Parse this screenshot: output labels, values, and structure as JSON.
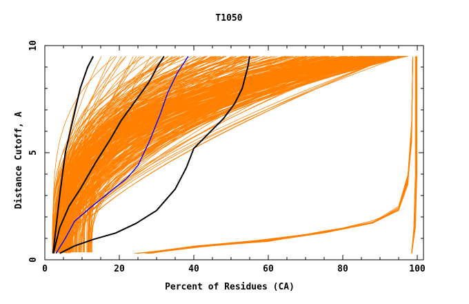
{
  "chart_data": {
    "type": "line",
    "title": "T1050",
    "xlabel": "Percent of Residues (CA)",
    "ylabel": "Distance Cutoff, A",
    "xlim": [
      0,
      101
    ],
    "ylim": [
      0,
      9.5
    ],
    "x_ticks": [
      0,
      20,
      40,
      60,
      80,
      100
    ],
    "y_ticks": [
      0,
      5,
      10
    ],
    "grid": false,
    "legend": "none",
    "colors": {
      "bundle": "#ff8000",
      "highlight_black": "#000000",
      "highlight_blue": "#0000ff"
    },
    "series": [
      {
        "color": "#000000",
        "values": [
          [
            2.2,
            0.3
          ],
          [
            3.0,
            1.5
          ],
          [
            4.0,
            3.0
          ],
          [
            5.5,
            5.0
          ],
          [
            7.5,
            6.5
          ],
          [
            9.5,
            8.0
          ],
          [
            11.5,
            9.0
          ],
          [
            13.0,
            9.5
          ]
        ]
      },
      {
        "color": "#000000",
        "values": [
          [
            2.3,
            0.3
          ],
          [
            4.0,
            1.5
          ],
          [
            6.5,
            2.5
          ],
          [
            9.5,
            3.3
          ],
          [
            13.5,
            4.5
          ],
          [
            17.5,
            5.6
          ],
          [
            20.5,
            6.5
          ],
          [
            25.5,
            7.7
          ],
          [
            28.0,
            8.3
          ],
          [
            30.5,
            9.1
          ],
          [
            32.0,
            9.5
          ]
        ]
      },
      {
        "color": "#0000ff",
        "values": [
          [
            3.0,
            0.3
          ],
          [
            5.5,
            1.0
          ],
          [
            8.0,
            1.8
          ],
          [
            12.0,
            2.4
          ],
          [
            17.0,
            3.1
          ],
          [
            22.0,
            3.8
          ],
          [
            25.0,
            4.4
          ],
          [
            28.0,
            5.5
          ],
          [
            31.0,
            6.8
          ],
          [
            33.0,
            7.8
          ],
          [
            35.5,
            8.7
          ],
          [
            38.5,
            9.5
          ]
        ]
      },
      {
        "color": "#000000",
        "values": [
          [
            4.0,
            0.3
          ],
          [
            8.0,
            0.65
          ],
          [
            13.0,
            0.95
          ],
          [
            19.0,
            1.25
          ],
          [
            24.5,
            1.7
          ],
          [
            30.0,
            2.3
          ],
          [
            35.0,
            3.3
          ],
          [
            38.0,
            4.3
          ],
          [
            40.0,
            5.2
          ],
          [
            44.0,
            5.9
          ],
          [
            48.0,
            6.6
          ],
          [
            51.0,
            7.3
          ],
          [
            53.0,
            8.0
          ],
          [
            54.5,
            9.0
          ],
          [
            55.0,
            9.5
          ]
        ]
      }
    ]
  }
}
